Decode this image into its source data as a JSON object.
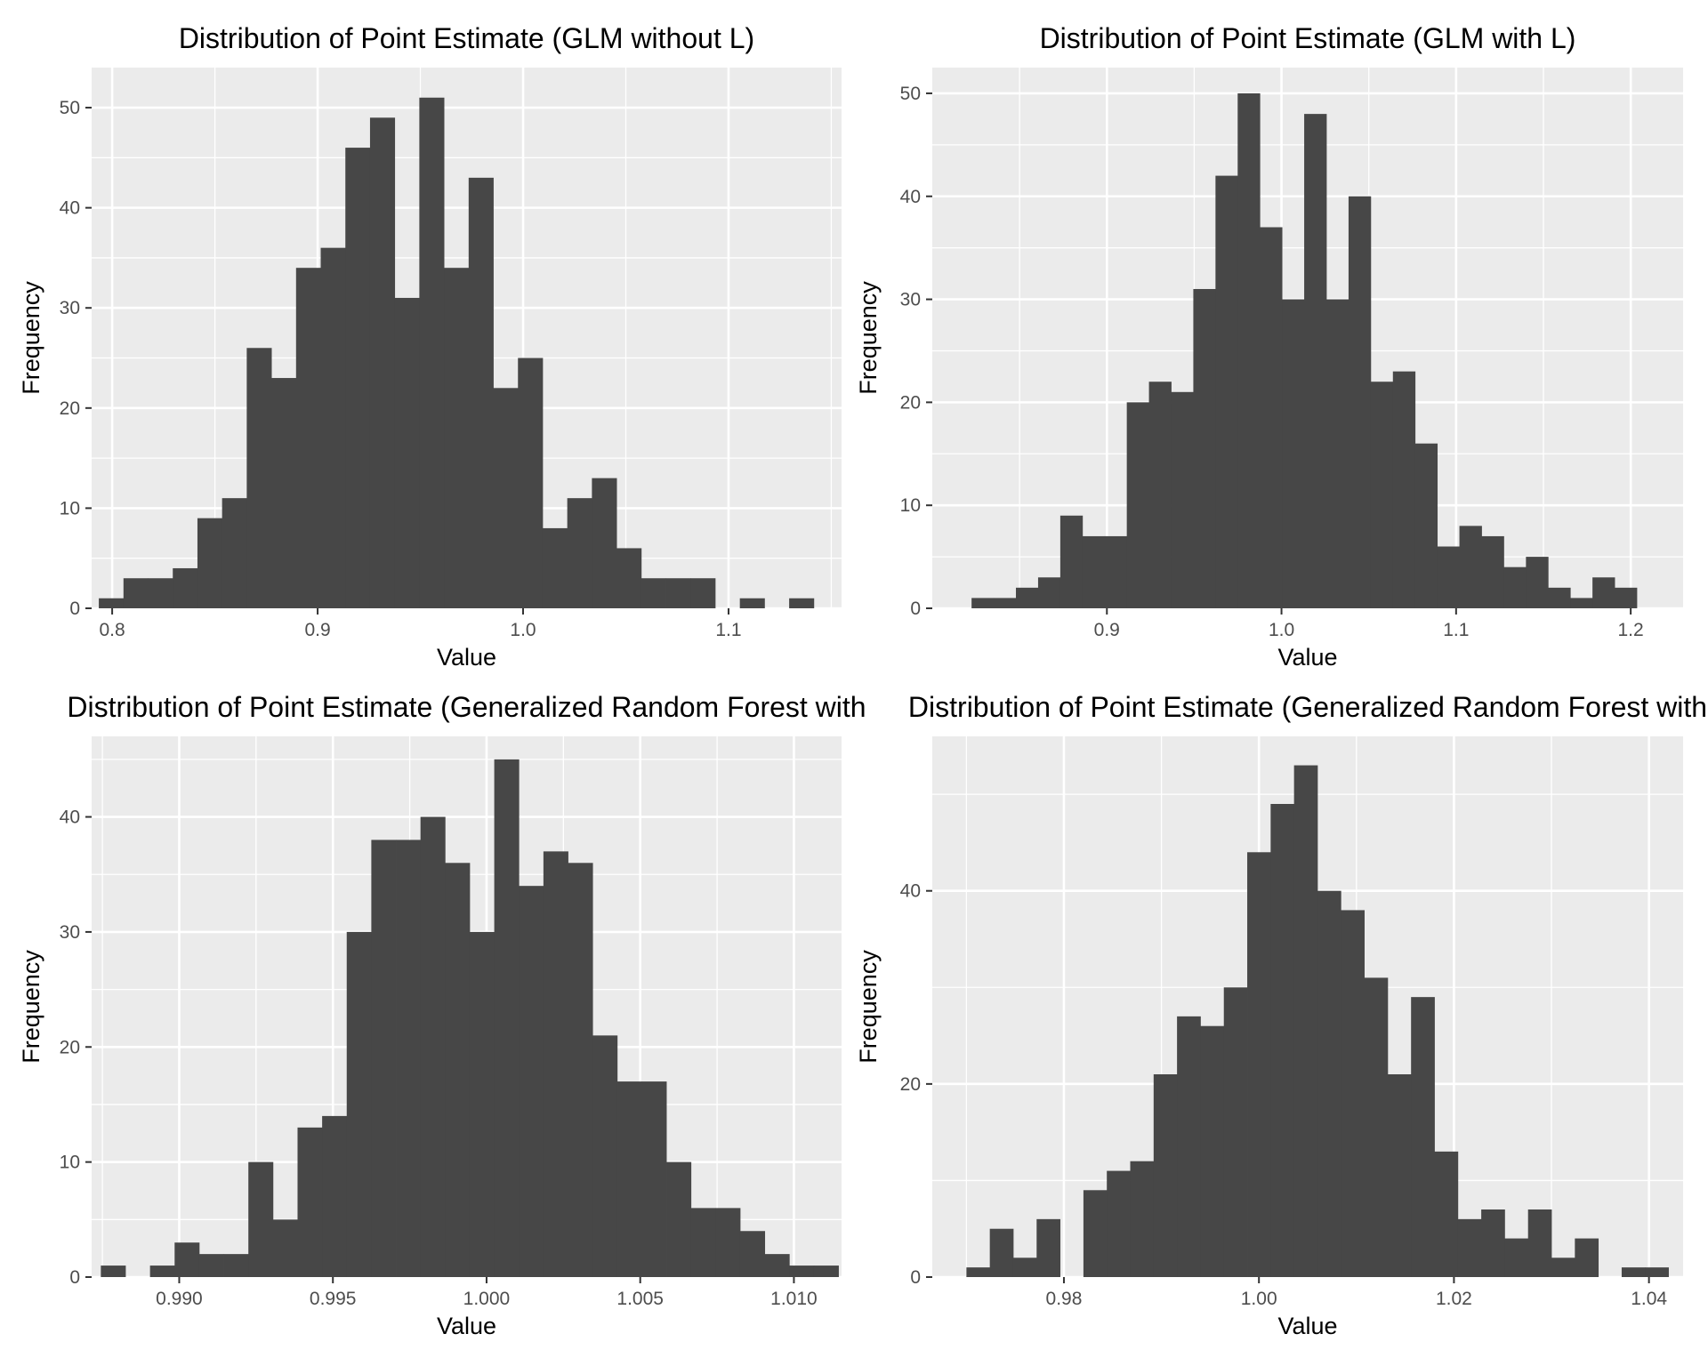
{
  "chart_data": [
    {
      "type": "bar",
      "title": "Distribution of Point Estimate (GLM without L)",
      "xlabel": "Value",
      "ylabel": "Frequency",
      "xlim": [
        0.79,
        1.155
      ],
      "ylim": [
        0,
        54
      ],
      "xticks": [
        0.8,
        0.9,
        1.0,
        1.1
      ],
      "xtick_labels": [
        "0.8",
        "0.9",
        "1.0",
        "1.1"
      ],
      "yticks": [
        0,
        10,
        20,
        30,
        40,
        50
      ],
      "ytick_labels": [
        "0",
        "10",
        "20",
        "30",
        "40",
        "50"
      ],
      "bin_start": 0.7935,
      "bin_width": 0.012,
      "values": [
        1,
        3,
        3,
        4,
        9,
        11,
        26,
        23,
        34,
        36,
        46,
        49,
        31,
        51,
        34,
        43,
        22,
        25,
        8,
        11,
        13,
        6,
        3,
        3,
        3,
        0,
        1,
        0,
        1
      ],
      "grid": true,
      "bar_color": "#474747",
      "panel_color": "#ebebeb"
    },
    {
      "type": "bar",
      "title": "Distribution of Point Estimate (GLM with L)",
      "xlabel": "Value",
      "ylabel": "Frequency",
      "xlim": [
        0.8,
        1.23
      ],
      "ylim": [
        0,
        52.5
      ],
      "xticks": [
        0.9,
        1.0,
        1.1,
        1.2
      ],
      "xtick_labels": [
        "0.9",
        "1.0",
        "1.1",
        "1.2"
      ],
      "yticks": [
        0,
        10,
        20,
        30,
        40,
        50
      ],
      "ytick_labels": [
        "0",
        "10",
        "20",
        "30",
        "40",
        "50"
      ],
      "bin_start": 0.8225,
      "bin_width": 0.0127,
      "values": [
        1,
        1,
        2,
        3,
        9,
        7,
        7,
        20,
        22,
        21,
        31,
        42,
        50,
        37,
        30,
        48,
        30,
        40,
        22,
        23,
        16,
        6,
        8,
        7,
        4,
        5,
        2,
        1,
        3,
        2
      ],
      "grid": true,
      "bar_color": "#474747",
      "panel_color": "#ebebeb"
    },
    {
      "type": "bar",
      "title": "Distribution of Point Estimate (Generalized Random Forest with",
      "xlabel": "Value",
      "ylabel": "Frequency",
      "xlim": [
        0.98715,
        1.01155
      ],
      "ylim": [
        0,
        47
      ],
      "xticks": [
        0.99,
        0.995,
        1.0,
        1.005,
        1.01
      ],
      "xtick_labels": [
        "0.990",
        "0.995",
        "1.000",
        "1.005",
        "1.010"
      ],
      "yticks": [
        0,
        10,
        20,
        30,
        40
      ],
      "ytick_labels": [
        "0",
        "10",
        "20",
        "30",
        "40"
      ],
      "bin_start": 0.98745,
      "bin_width": 0.0008,
      "values": [
        1,
        0,
        1,
        3,
        2,
        2,
        10,
        5,
        13,
        14,
        30,
        38,
        38,
        40,
        36,
        30,
        45,
        34,
        37,
        36,
        21,
        17,
        17,
        10,
        6,
        6,
        4,
        2,
        1,
        1
      ],
      "grid": true,
      "bar_color": "#474747",
      "panel_color": "#ebebeb"
    },
    {
      "type": "bar",
      "title": "Distribution of Point Estimate (Generalized Random Forest with",
      "xlabel": "Value",
      "ylabel": "Frequency",
      "xlim": [
        0.9665,
        1.0435
      ],
      "ylim": [
        0,
        56
      ],
      "xticks": [
        0.98,
        1.0,
        1.02,
        1.04
      ],
      "xtick_labels": [
        "0.98",
        "1.00",
        "1.02",
        "1.04"
      ],
      "yticks": [
        0,
        20,
        40
      ],
      "ytick_labels": [
        "0",
        "20",
        "40"
      ],
      "bin_start": 0.97,
      "bin_width": 0.0024,
      "values": [
        1,
        5,
        2,
        6,
        0,
        9,
        11,
        12,
        21,
        27,
        26,
        30,
        44,
        49,
        53,
        40,
        38,
        31,
        21,
        29,
        13,
        6,
        7,
        4,
        7,
        2,
        4,
        0,
        1,
        1
      ],
      "grid": true,
      "bar_color": "#474747",
      "panel_color": "#ebebeb"
    }
  ]
}
